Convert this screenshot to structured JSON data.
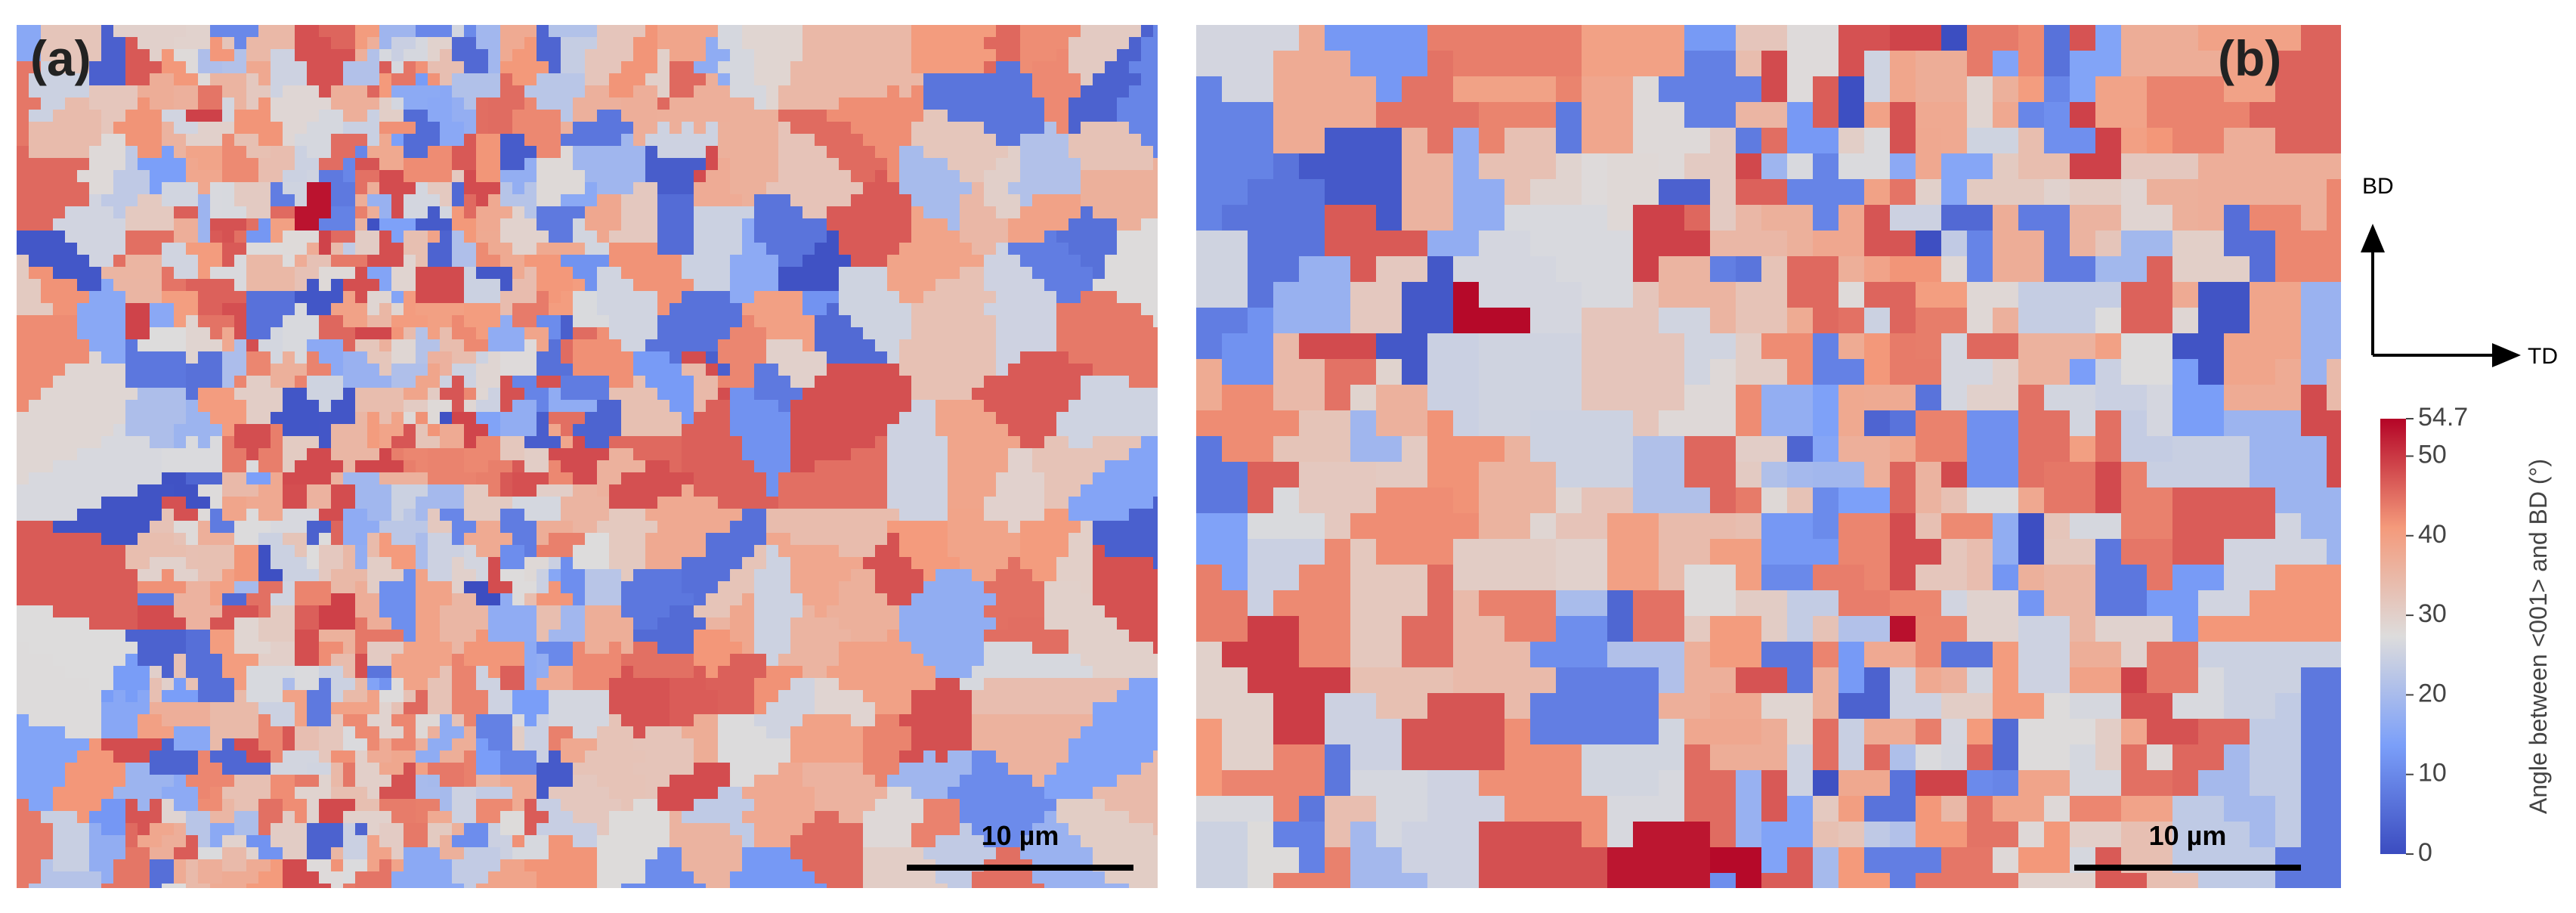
{
  "panels": [
    {
      "label": "(a)",
      "scale_bar": "10 µm"
    },
    {
      "label": "(b)",
      "scale_bar": "10 µm"
    }
  ],
  "axes": {
    "vertical": "BD",
    "horizontal": "TD"
  },
  "colorbar": {
    "label": "Angle between <001> and BD (°)",
    "lim": [
      0,
      54.7
    ],
    "ticks": [
      0,
      10,
      20,
      30,
      40,
      50,
      54.7
    ]
  }
}
